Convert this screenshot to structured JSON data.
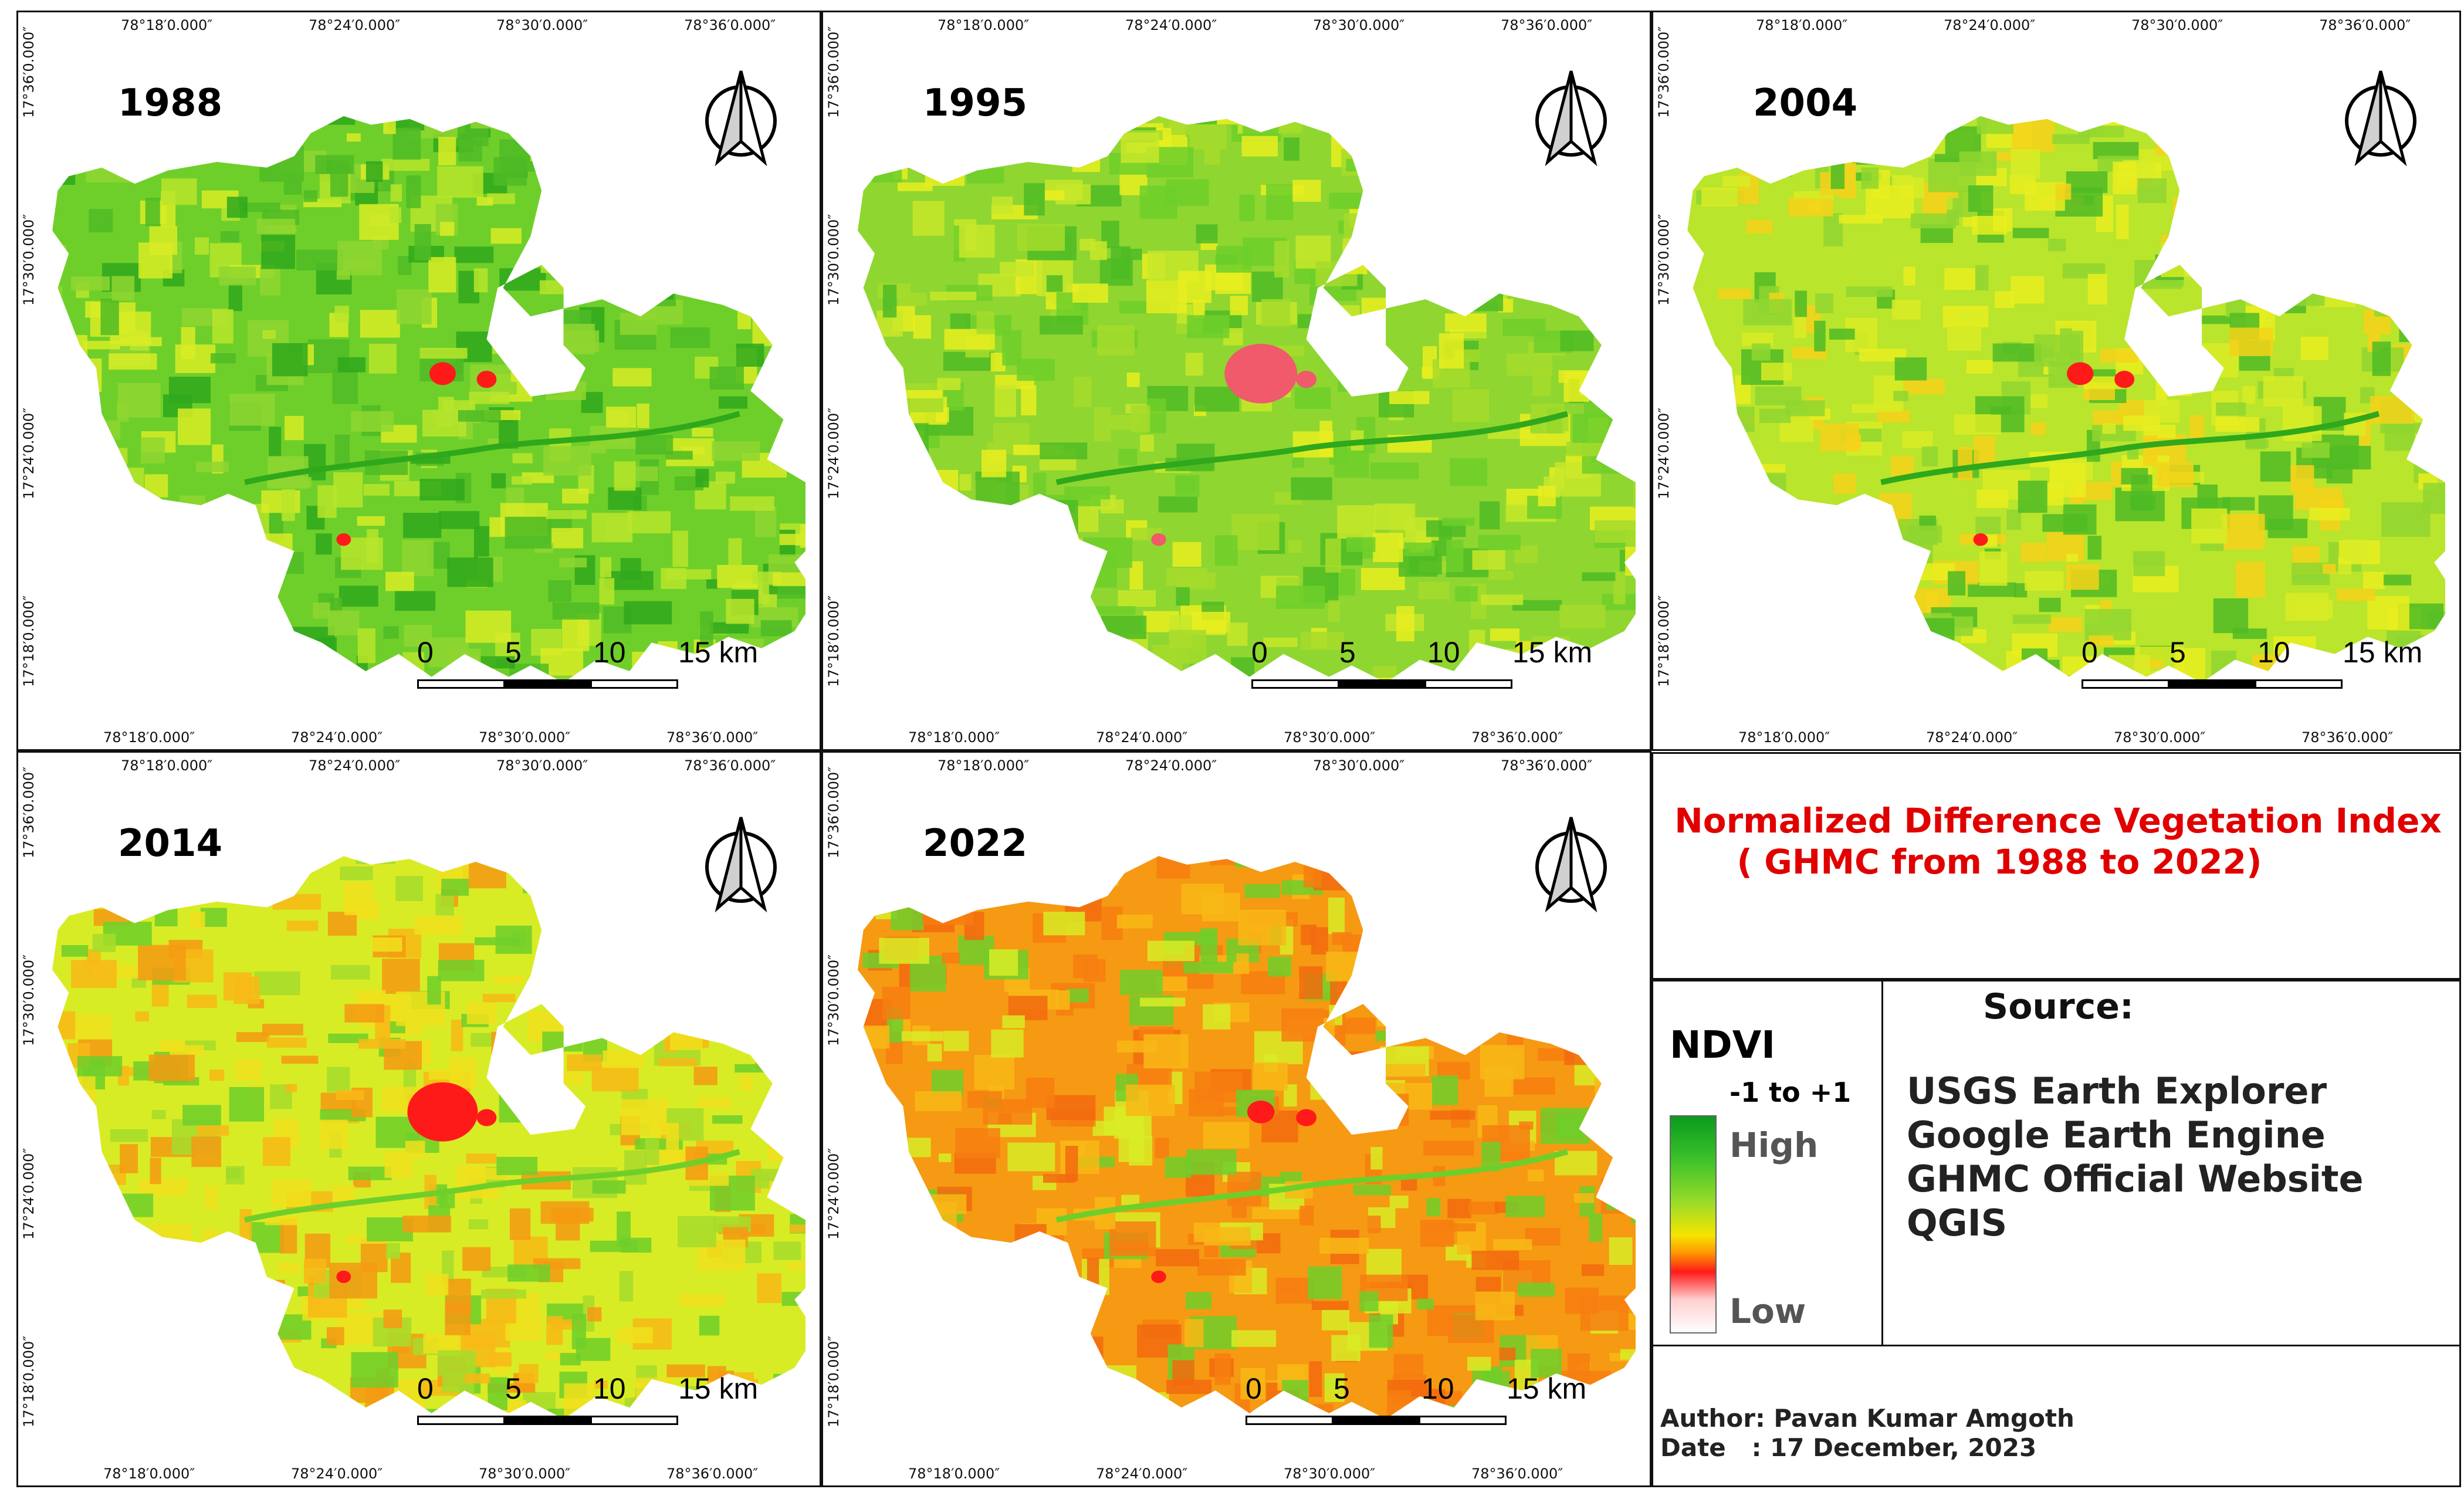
{
  "panels": [
    {
      "year": "1988",
      "top_lon": [
        "78°18′0.000″",
        "78°24′0.000″",
        "78°30′0.000″",
        "78°36′0.000″"
      ],
      "bot_lon": [
        "78°18′0.000″",
        "78°24′0.000″",
        "78°30′0.000″",
        "78°36′0.000″"
      ],
      "lat": [
        "17°36′0.000″",
        "17°30′0.000″",
        "17°24′0.000″",
        "17°18′0.000″"
      ],
      "scale": [
        "0",
        "5",
        "10",
        "15 km"
      ]
    },
    {
      "year": "1995",
      "top_lon": [
        "78°18′0.000″",
        "78°24′0.000″",
        "78°30′0.000″",
        "78°36′0.000″"
      ],
      "bot_lon": [
        "78°18′0.000″",
        "78°24′0.000″",
        "78°30′0.000″",
        "78°36′0.000″"
      ],
      "lat": [
        "17°36′0.000″",
        "17°30′0.000″",
        "17°24′0.000″",
        "17°18′0.000″"
      ],
      "scale": [
        "0",
        "5",
        "10",
        "15 km"
      ]
    },
    {
      "year": "2004",
      "top_lon": [
        "78°18′0.000″",
        "78°24′0.000″",
        "78°30′0.000″",
        "78°36′0.000″"
      ],
      "bot_lon": [
        "78°18′0.000″",
        "78°24′0.000″",
        "78°30′0.000″",
        "78°36′0.000″"
      ],
      "lat": [
        "17°36′0.000″",
        "17°30′0.000″",
        "17°24′0.000″",
        "17°18′0.000″"
      ],
      "scale": [
        "0",
        "5",
        "10",
        "15 km"
      ]
    },
    {
      "year": "2014",
      "top_lon": [
        "78°18′0.000″",
        "78°24′0.000″",
        "78°30′0.000″",
        "78°36′0.000″"
      ],
      "bot_lon": [
        "78°18′0.000″",
        "78°24′0.000″",
        "78°30′0.000″",
        "78°36′0.000″"
      ],
      "lat": [
        "17°36′0.000″",
        "17°30′0.000″",
        "17°24′0.000″",
        "17°18′0.000″"
      ],
      "scale": [
        "0",
        "5",
        "10",
        "15 km"
      ]
    },
    {
      "year": "2022",
      "top_lon": [
        "78°18′0.000″",
        "78°24′0.000″",
        "78°30′0.000″",
        "78°36′0.000″"
      ],
      "bot_lon": [
        "78°18′0.000″",
        "78°24′0.000″",
        "78°30′0.000″",
        "78°36′0.000″"
      ],
      "lat": [
        "17°36′0.000″",
        "17°30′0.000″",
        "17°24′0.000″",
        "17°18′0.000″"
      ],
      "scale": [
        "0",
        "5",
        "10",
        "15 km"
      ]
    }
  ],
  "title": {
    "line1": "Normalized Difference Vegetation Index",
    "line2": "( GHMC from 1988 to 2022)"
  },
  "legend": {
    "heading": "NDVI",
    "range": "-1 to +1",
    "high": "High",
    "low": "Low"
  },
  "source": {
    "heading": "Source:",
    "items": [
      "USGS Earth Explorer",
      "Google Earth Engine",
      "GHMC Official Website",
      "QGIS"
    ]
  },
  "credits": {
    "author": "Author: Pavan Kumar Amgoth",
    "date": "Date   : 17 December, 2023"
  },
  "colors": {
    "title": "#e00000",
    "high": "#0a9a1e",
    "mid": "#f5e400",
    "low": "#ff1a1a"
  }
}
